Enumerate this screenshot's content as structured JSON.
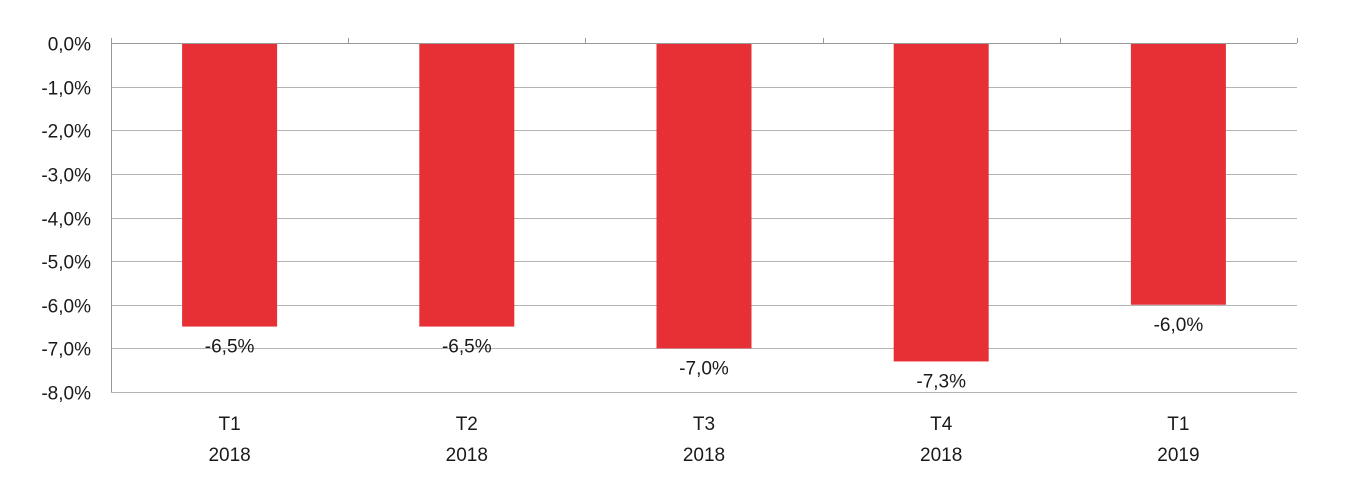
{
  "chart_data": {
    "type": "bar",
    "title": "",
    "xlabel": "",
    "ylabel": "",
    "categories": [
      [
        "T1",
        "2018"
      ],
      [
        "T2",
        "2018"
      ],
      [
        "T3",
        "2018"
      ],
      [
        "T4",
        "2018"
      ],
      [
        "T1",
        "2019"
      ]
    ],
    "series": [
      {
        "values": [
          -6.5,
          -6.5,
          -7.0,
          -7.3,
          -6.0
        ],
        "data_labels": [
          "-6,5%",
          "-6,5%",
          "-7,0%",
          "-7,3%",
          "-6,0%"
        ],
        "color": "#e63036"
      }
    ],
    "ylim": [
      -8,
      0
    ],
    "yticks": [
      0,
      -1,
      -2,
      -3,
      -4,
      -5,
      -6,
      -7,
      -8
    ],
    "ytick_labels": [
      "0,0%",
      "-1,0%",
      "-2,0%",
      "-3,0%",
      "-4,0%",
      "-5,0%",
      "-6,0%",
      "-7,0%",
      "-8,0%"
    ],
    "grid": true,
    "legend": "none"
  }
}
